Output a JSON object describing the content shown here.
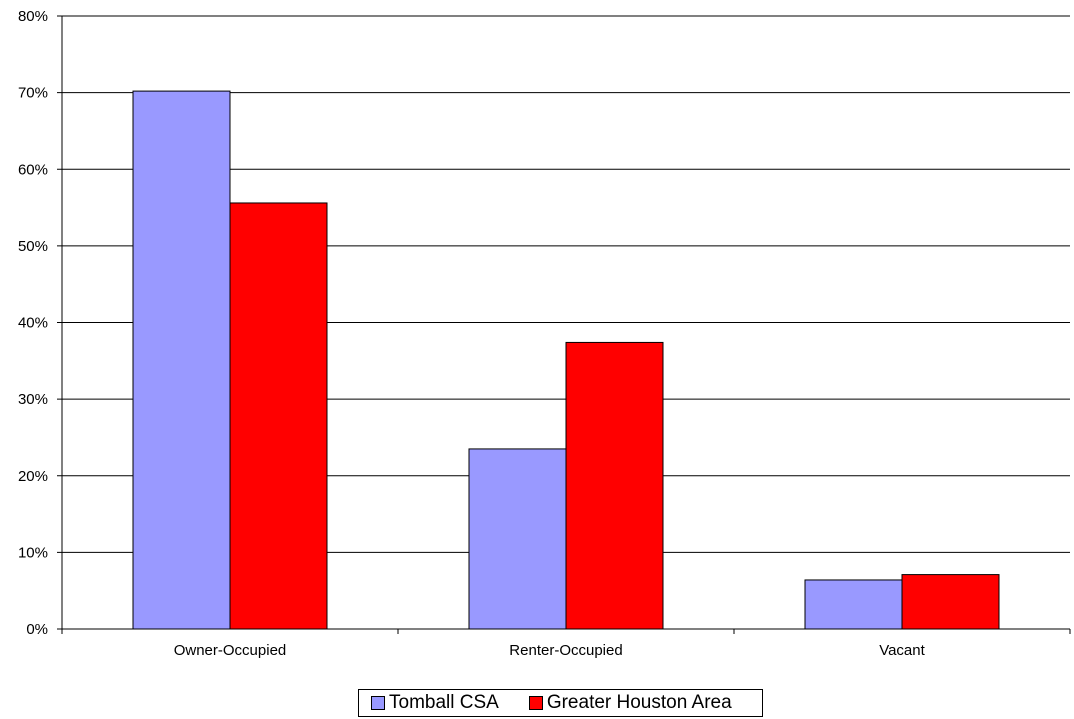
{
  "chart_data": {
    "type": "bar",
    "categories": [
      "Owner-Occupied",
      "Renter-Occupied",
      "Vacant"
    ],
    "series": [
      {
        "name": "Tomball CSA",
        "values": [
          70.2,
          23.5,
          6.4
        ],
        "color": "#9999ff"
      },
      {
        "name": "Greater Houston Area",
        "values": [
          55.6,
          37.4,
          7.1
        ],
        "color": "#ff0000"
      }
    ],
    "y_ticks": [
      "0%",
      "10%",
      "20%",
      "30%",
      "40%",
      "50%",
      "60%",
      "70%",
      "80%"
    ],
    "ylim": [
      0,
      80
    ],
    "grid": true,
    "legend_position": "bottom"
  }
}
